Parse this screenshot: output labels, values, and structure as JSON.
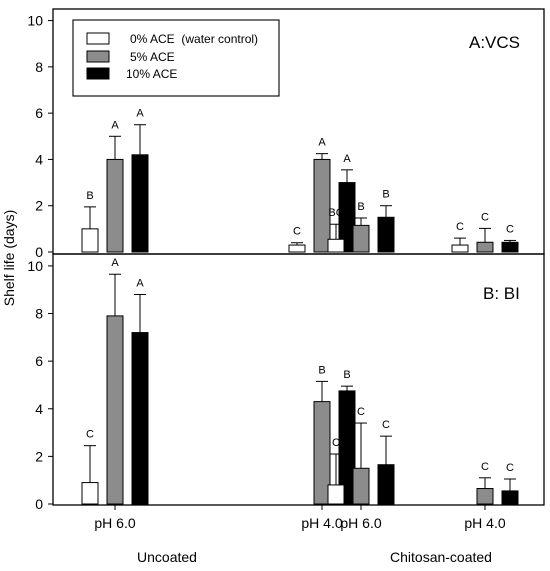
{
  "chart_data": {
    "type": "bar",
    "ylabel": "Shelf life (days)",
    "ylim": [
      0,
      10.5
    ],
    "yticks": [
      0,
      2,
      4,
      6,
      8,
      10
    ],
    "grid": false,
    "legend_position": "top-left",
    "categories": [
      "pH 6.0",
      "pH 4.0",
      "pH 6.0",
      "pH 4.0"
    ],
    "groups": [
      "Uncoated",
      "Chitosan-coated"
    ],
    "series": [
      {
        "name": "0% ACE  (water control)",
        "color": "#ffffff"
      },
      {
        "name": "5% ACE",
        "color": "#8c8c8c"
      },
      {
        "name": "10% ACE",
        "color": "#000000"
      }
    ],
    "panels": [
      {
        "label": "A:VCS",
        "values": [
          [
            1.0,
            4.0,
            4.2
          ],
          [
            0.3,
            4.0,
            3.0
          ],
          [
            0.55,
            1.15,
            1.5
          ],
          [
            0.3,
            0.42,
            0.42
          ]
        ],
        "errors": [
          [
            0.95,
            1.0,
            1.3
          ],
          [
            0.1,
            0.25,
            0.55
          ],
          [
            0.65,
            0.32,
            0.5
          ],
          [
            0.3,
            0.6,
            0.08
          ]
        ],
        "letters": [
          [
            "B",
            "A",
            "A"
          ],
          [
            "C",
            "A",
            "A"
          ],
          [
            "BC",
            "B",
            "B"
          ],
          [
            "C",
            "C",
            "C"
          ]
        ]
      },
      {
        "label": "B: BI",
        "values": [
          [
            0.9,
            7.9,
            7.2
          ],
          [
            null,
            4.3,
            4.75
          ],
          [
            0.8,
            1.5,
            1.65
          ],
          [
            null,
            0.65,
            0.55
          ]
        ],
        "errors": [
          [
            1.55,
            1.75,
            1.6
          ],
          [
            null,
            0.85,
            0.2
          ],
          [
            1.3,
            1.9,
            1.2
          ],
          [
            null,
            0.45,
            0.5
          ]
        ],
        "letters": [
          [
            "C",
            "A",
            "A"
          ],
          [
            null,
            "B",
            "B"
          ],
          [
            "C",
            "C",
            "C"
          ],
          [
            null,
            "C",
            "C"
          ]
        ]
      }
    ]
  }
}
